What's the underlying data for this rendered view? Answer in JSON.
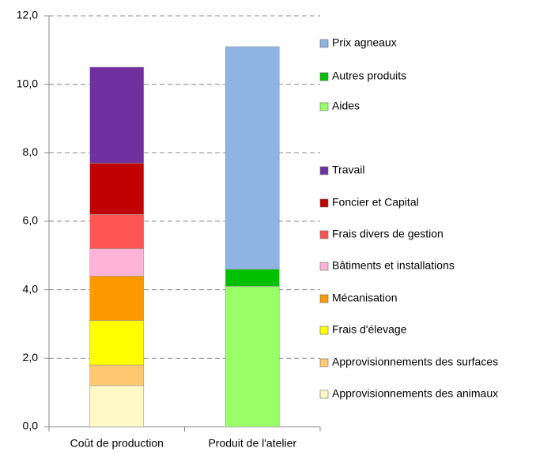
{
  "chart_data": {
    "type": "stacked_bar",
    "categories": [
      "Coût de production",
      "Produit de l'atelier"
    ],
    "series": [
      {
        "name": "Approvisionnements des animaux",
        "color": "#fff9c8",
        "values": [
          1.2,
          0
        ]
      },
      {
        "name": "Approvisionnements des surfaces",
        "color": "#ffc870",
        "values": [
          0.6,
          0
        ]
      },
      {
        "name": "Frais d'élevage",
        "color": "#ffff00",
        "values": [
          1.3,
          0
        ]
      },
      {
        "name": "Mécanisation",
        "color": "#ff9900",
        "values": [
          1.3,
          0
        ]
      },
      {
        "name": "Bâtiments et installations",
        "color": "#ffb3d9",
        "values": [
          0.8,
          0
        ]
      },
      {
        "name": "Frais divers de gestion",
        "color": "#ff5555",
        "values": [
          1.0,
          0
        ]
      },
      {
        "name": "Foncier et Capital",
        "color": "#c00000",
        "values": [
          1.5,
          0
        ]
      },
      {
        "name": "Travail",
        "color": "#7030a0",
        "values": [
          2.8,
          0
        ]
      },
      {
        "name": "Aides",
        "color": "#99ff66",
        "values": [
          0,
          4.1
        ]
      },
      {
        "name": "Autres produits",
        "color": "#00c000",
        "values": [
          0,
          0.5
        ]
      },
      {
        "name": "Prix agneaux",
        "color": "#8fb4e3",
        "values": [
          0,
          6.5
        ]
      }
    ],
    "ylim": [
      0,
      12
    ],
    "yticks": [
      {
        "value": 0,
        "label": "0,0"
      },
      {
        "value": 2,
        "label": "2,0"
      },
      {
        "value": 4,
        "label": "4,0"
      },
      {
        "value": 6,
        "label": "6,0"
      },
      {
        "value": 8,
        "label": "8,0"
      },
      {
        "value": 10,
        "label": "10,0"
      },
      {
        "value": 12,
        "label": "12,0"
      }
    ],
    "grid": true,
    "legend": "right"
  }
}
